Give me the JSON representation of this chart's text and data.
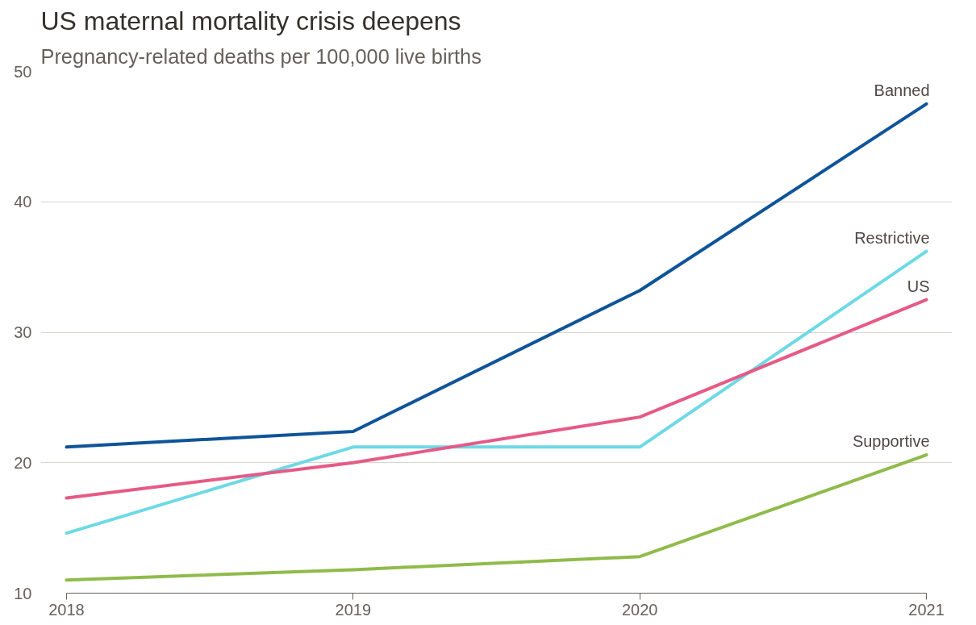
{
  "chart_data": {
    "type": "line",
    "title": "US maternal mortality crisis deepens",
    "subtitle": "Pregnancy-related deaths per 100,000 live births",
    "x": [
      2018,
      2019,
      2020,
      2021
    ],
    "series": [
      {
        "name": "Banned",
        "color": "#0f5499",
        "values": [
          21.2,
          22.4,
          33.2,
          47.5
        ]
      },
      {
        "name": "Restrictive",
        "color": "#6dd9e6",
        "values": [
          14.6,
          21.2,
          21.2,
          36.2
        ]
      },
      {
        "name": "US",
        "color": "#e55a86",
        "values": [
          17.3,
          20.0,
          23.5,
          32.5
        ]
      },
      {
        "name": "Supportive",
        "color": "#8fbb4b",
        "values": [
          11.0,
          11.8,
          12.8,
          20.6
        ]
      }
    ],
    "xlim": [
      2018,
      2021
    ],
    "xticks": [
      2018,
      2019,
      2020,
      2021
    ],
    "ylim": [
      10,
      50
    ],
    "yticks": [
      10,
      20,
      30,
      40,
      50
    ],
    "grid": "y",
    "marker": "none",
    "line_style": "solid"
  }
}
